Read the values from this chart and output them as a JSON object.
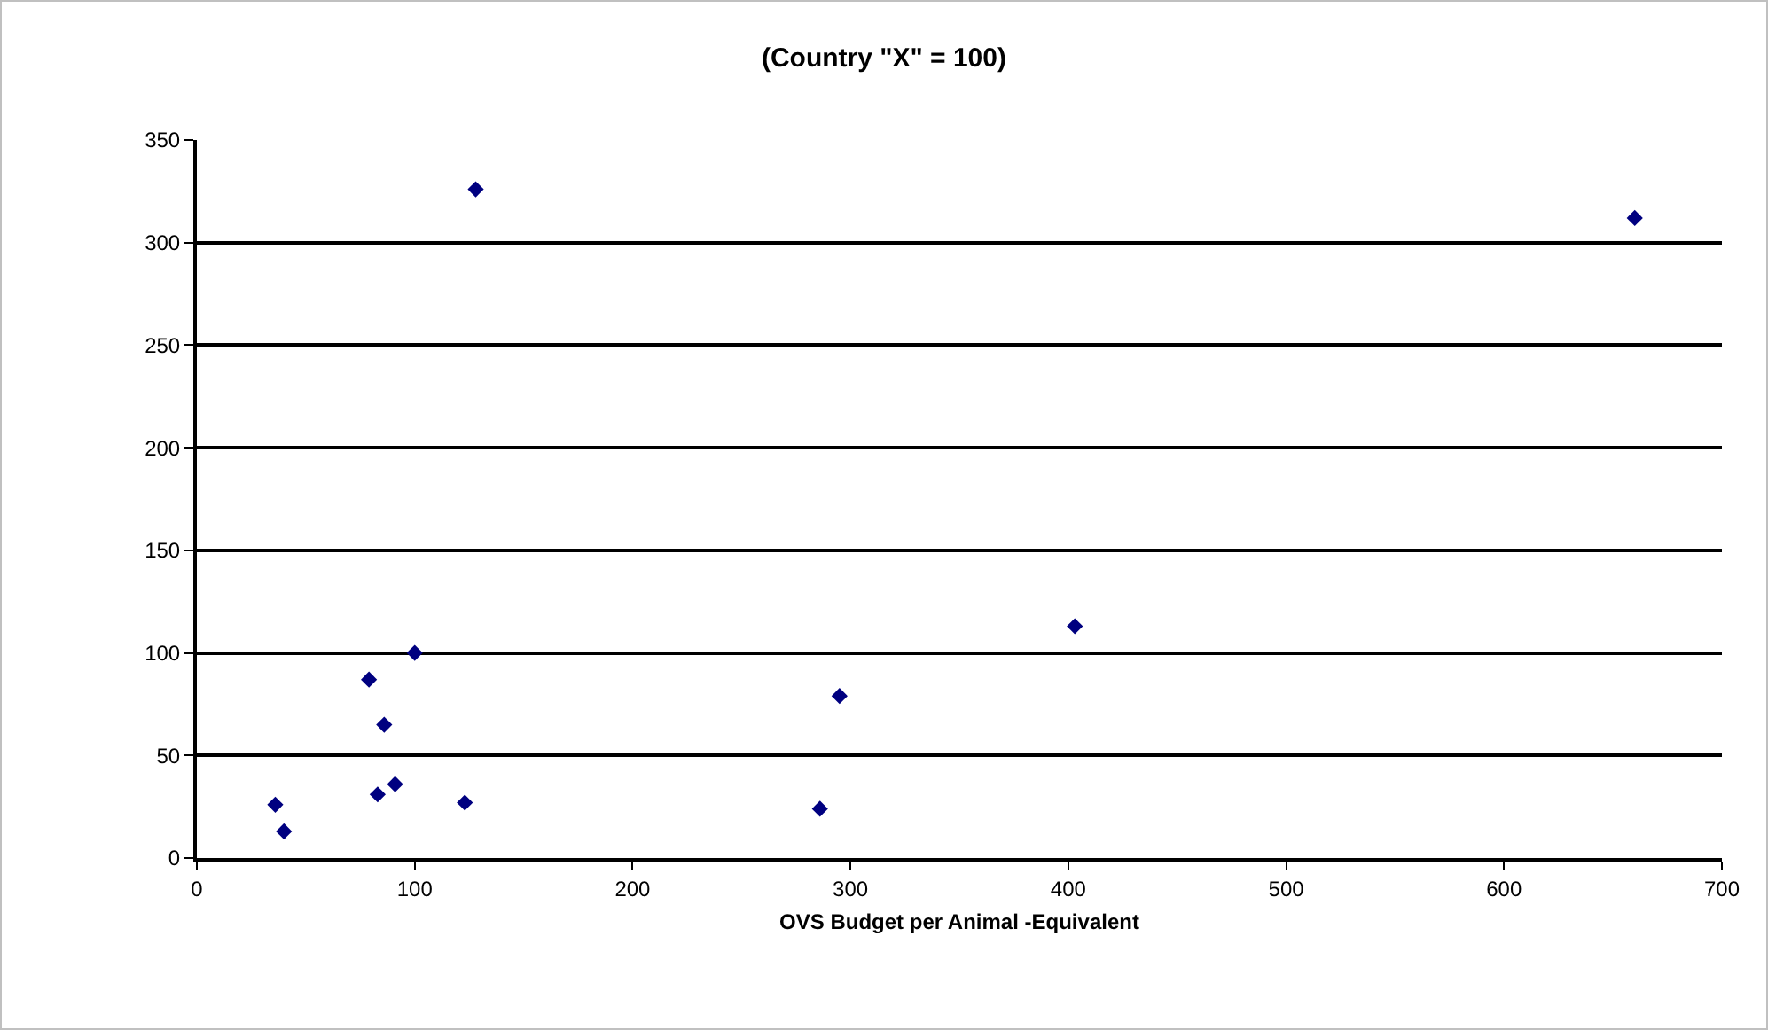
{
  "chart_data": {
    "type": "scatter",
    "title": "(Country \"X\" = 100)",
    "xlabel": "OVS Budget per Animal -Equivalent",
    "x": [
      36,
      40,
      79,
      100,
      86,
      83,
      91,
      123,
      403,
      295,
      286,
      128,
      660
    ],
    "values": [
      26,
      13,
      87,
      100,
      65,
      31,
      36,
      27,
      113,
      79,
      24,
      326,
      312
    ],
    "color": "#000080",
    "marker": "diamond",
    "grid": "y",
    "xlim": [
      0,
      700
    ],
    "xticks": [
      0,
      100,
      200,
      300,
      400,
      500,
      600,
      700
    ],
    "ylim": [
      0,
      350
    ],
    "yticks": [
      0,
      50,
      100,
      150,
      200,
      250,
      300,
      350
    ]
  }
}
